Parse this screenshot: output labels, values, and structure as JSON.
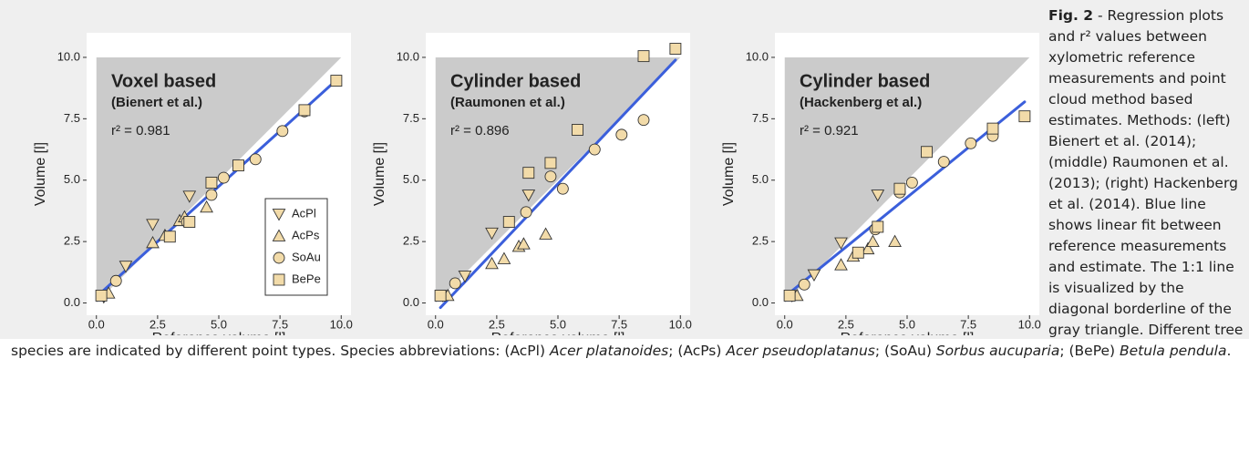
{
  "chart_data": [
    {
      "type": "scatter",
      "title": "Voxel based",
      "subtitle": "(Bienert et al.)",
      "annotation": "r² = 0.981",
      "x_label": "Reference volume [l]",
      "y_label": "Volume [l]",
      "xlim": [
        -0.4,
        10.4
      ],
      "ylim": [
        -0.5,
        11
      ],
      "xticks": [
        {
          "value": 0,
          "label": "0.0"
        },
        2.5,
        {
          "value": 5,
          "label": "5.0"
        },
        7.5,
        {
          "value": 10,
          "label": "10.0"
        }
      ],
      "yticks": [
        {
          "value": 0,
          "label": "0.0"
        },
        2.5,
        {
          "value": 5,
          "label": "5.0"
        },
        7.5,
        {
          "value": 10,
          "label": "10.0"
        }
      ],
      "legend": "lower right",
      "fit": {
        "slope": 0.9,
        "intercept": 0.25,
        "color": "#3b5fdb"
      },
      "series": [
        {
          "name": "AcPl",
          "marker": "triangle-down",
          "color": "#f2dba9",
          "x": [
            0.3,
            1.2,
            2.3,
            3.8
          ],
          "y": [
            0.25,
            1.5,
            3.2,
            4.35
          ]
        },
        {
          "name": "AcPs",
          "marker": "triangle-up",
          "color": "#f2dba9",
          "x": [
            0.5,
            2.3,
            2.8,
            3.4,
            3.6,
            4.5
          ],
          "y": [
            0.4,
            2.45,
            2.75,
            3.35,
            3.5,
            3.9
          ]
        },
        {
          "name": "SoAu",
          "marker": "circle",
          "color": "#f2dba9",
          "x": [
            0.8,
            3.7,
            4.7,
            5.2,
            6.5,
            7.6,
            8.5
          ],
          "y": [
            0.9,
            3.3,
            4.4,
            5.1,
            5.85,
            7.0,
            7.8
          ]
        },
        {
          "name": "BePe",
          "marker": "square",
          "color": "#f2dba9",
          "x": [
            0.2,
            3.0,
            3.8,
            4.7,
            5.8,
            8.5,
            9.8
          ],
          "y": [
            0.3,
            2.7,
            3.3,
            4.9,
            5.6,
            7.85,
            9.05
          ]
        }
      ]
    },
    {
      "type": "scatter",
      "title": "Cylinder based",
      "subtitle": "(Raumonen et al.)",
      "annotation": "r² = 0.896",
      "x_label": "Reference volume [l]",
      "y_label": "Volume [l]",
      "xlim": [
        -0.4,
        10.4
      ],
      "ylim": [
        -0.5,
        11
      ],
      "xticks": [
        {
          "value": 0,
          "label": "0.0"
        },
        2.5,
        {
          "value": 5,
          "label": "5.0"
        },
        7.5,
        {
          "value": 10,
          "label": "10.0"
        }
      ],
      "yticks": [
        {
          "value": 0,
          "label": "0.0"
        },
        2.5,
        {
          "value": 5,
          "label": "5.0"
        },
        7.5,
        {
          "value": 10,
          "label": "10.0"
        }
      ],
      "fit": {
        "slope": 1.05,
        "intercept": -0.4,
        "color": "#3b5fdb"
      },
      "series": [
        {
          "marker": "triangle-down",
          "color": "#f2dba9",
          "x": [
            0.3,
            1.2,
            2.3,
            3.8
          ],
          "y": [
            0.3,
            1.1,
            2.85,
            4.4
          ]
        },
        {
          "marker": "triangle-up",
          "color": "#f2dba9",
          "x": [
            0.5,
            2.3,
            2.8,
            3.4,
            3.6,
            4.5
          ],
          "y": [
            0.3,
            1.6,
            1.8,
            2.3,
            2.4,
            2.8
          ]
        },
        {
          "marker": "circle",
          "color": "#f2dba9",
          "x": [
            0.8,
            3.7,
            4.7,
            5.2,
            6.5,
            7.6,
            8.5
          ],
          "y": [
            0.8,
            3.7,
            5.15,
            4.65,
            6.25,
            6.85,
            7.45
          ]
        },
        {
          "marker": "square",
          "color": "#f2dba9",
          "x": [
            0.2,
            3.0,
            3.8,
            4.7,
            5.8,
            8.5,
            9.8
          ],
          "y": [
            0.3,
            3.3,
            5.3,
            5.7,
            7.05,
            10.05,
            10.35
          ]
        }
      ]
    },
    {
      "type": "scatter",
      "title": "Cylinder based",
      "subtitle": "(Hackenberg et al.)",
      "annotation": "r² = 0.921",
      "x_label": "Reference volume [l]",
      "y_label": "Volume [l]",
      "xlim": [
        -0.4,
        10.4
      ],
      "ylim": [
        -0.5,
        11
      ],
      "xticks": [
        {
          "value": 0,
          "label": "0.0"
        },
        2.5,
        {
          "value": 5,
          "label": "5.0"
        },
        7.5,
        {
          "value": 10,
          "label": "10.0"
        }
      ],
      "yticks": [
        {
          "value": 0,
          "label": "0.0"
        },
        2.5,
        {
          "value": 5,
          "label": "5.0"
        },
        7.5,
        {
          "value": 10,
          "label": "10.0"
        }
      ],
      "fit": {
        "slope": 0.81,
        "intercept": 0.25,
        "color": "#3b5fdb"
      },
      "series": [
        {
          "marker": "triangle-down",
          "color": "#f2dba9",
          "x": [
            0.3,
            1.2,
            2.3,
            3.8
          ],
          "y": [
            0.3,
            1.15,
            2.45,
            4.4
          ]
        },
        {
          "marker": "triangle-up",
          "color": "#f2dba9",
          "x": [
            0.5,
            2.3,
            2.8,
            3.4,
            3.6,
            4.5
          ],
          "y": [
            0.3,
            1.55,
            1.9,
            2.2,
            2.5,
            2.5
          ]
        },
        {
          "marker": "circle",
          "color": "#f2dba9",
          "x": [
            0.8,
            3.7,
            4.7,
            5.2,
            6.5,
            7.6,
            8.5
          ],
          "y": [
            0.75,
            3.0,
            4.5,
            4.9,
            5.75,
            6.5,
            6.8
          ]
        },
        {
          "marker": "square",
          "color": "#f2dba9",
          "x": [
            0.2,
            3.0,
            3.8,
            4.7,
            5.8,
            8.5,
            9.8
          ],
          "y": [
            0.3,
            2.05,
            3.1,
            4.65,
            6.15,
            7.1,
            7.6
          ]
        }
      ]
    }
  ],
  "caption": {
    "parts": [
      {
        "text": "Fig. 2",
        "style": "bold"
      },
      {
        "text": " - Regression plots and r² values between xylometric reference measurements and point cloud method based estimates. Methods: (left) Bienert et al. (2014); (middle) Raumonen et al. (2013); (right) Hackenberg et al. (2014). Blue line shows linear fit between reference measurements and estimate. The 1:1 line is visualized by the diagonal borderline of the gray triangle. Different tree species are indicated by different point types. Species abbreviations: (AcPl) "
      },
      {
        "text": "Acer platanoides",
        "style": "italic"
      },
      {
        "text": "; (AcPs) "
      },
      {
        "text": "Acer pseudoplatanus",
        "style": "italic"
      },
      {
        "text": "; (SoAu) "
      },
      {
        "text": "Sorbus aucuparia",
        "style": "italic"
      },
      {
        "text": "; (BePe) "
      },
      {
        "text": "Betula pendula",
        "style": "italic"
      },
      {
        "text": "."
      }
    ]
  }
}
